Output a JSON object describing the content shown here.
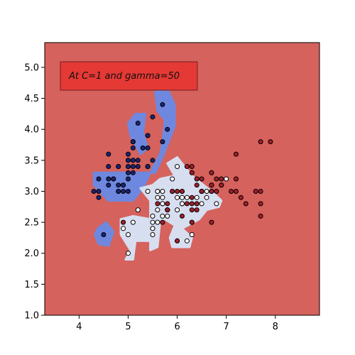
{
  "chart_data": {
    "type": "scatter",
    "title": "",
    "xlabel": "",
    "ylabel": "",
    "xlim": [
      3.3,
      8.9
    ],
    "ylim": [
      1.0,
      5.4
    ],
    "x_ticks": [
      4,
      5,
      6,
      7,
      8
    ],
    "y_ticks": [
      1.0,
      1.5,
      2.0,
      2.5,
      3.0,
      3.5,
      4.0,
      4.5,
      5.0
    ],
    "x_tick_labels": [
      "4",
      "5",
      "6",
      "7",
      "8"
    ],
    "y_tick_labels": [
      "1.0",
      "1.5",
      "2.0",
      "2.5",
      "3.0",
      "3.5",
      "4.0",
      "4.5",
      "5.0"
    ],
    "grid": false,
    "annotation": "At C=1 and gamma=50",
    "colors": {
      "background_region": "#d5625d",
      "class0_region": "#6f88df",
      "class1_region": "#d7def0",
      "class0_point": "#1c2474",
      "class1_point": "#ffffff",
      "class2_point": "#a31f2a",
      "annotation_box": "#e53935",
      "point_edge": "#000000"
    },
    "series": [
      {
        "class": 0,
        "points": [
          [
            5.1,
            3.5
          ],
          [
            4.9,
            3.0
          ],
          [
            4.7,
            3.2
          ],
          [
            4.6,
            3.1
          ],
          [
            5.0,
            3.6
          ],
          [
            5.4,
            3.9
          ],
          [
            4.6,
            3.4
          ],
          [
            5.0,
            3.4
          ],
          [
            4.4,
            2.9
          ],
          [
            4.9,
            3.1
          ],
          [
            5.4,
            3.7
          ],
          [
            4.8,
            3.4
          ],
          [
            4.8,
            3.0
          ],
          [
            4.3,
            3.0
          ],
          [
            5.8,
            4.0
          ],
          [
            5.7,
            4.4
          ],
          [
            5.4,
            3.9
          ],
          [
            5.1,
            3.5
          ],
          [
            5.7,
            3.8
          ],
          [
            5.1,
            3.8
          ],
          [
            5.4,
            3.4
          ],
          [
            5.1,
            3.7
          ],
          [
            4.6,
            3.6
          ],
          [
            5.1,
            3.3
          ],
          [
            4.8,
            3.4
          ],
          [
            5.0,
            3.0
          ],
          [
            5.0,
            3.4
          ],
          [
            5.2,
            3.5
          ],
          [
            5.2,
            3.4
          ],
          [
            4.7,
            3.2
          ],
          [
            4.8,
            3.1
          ],
          [
            5.4,
            3.4
          ],
          [
            5.2,
            4.1
          ],
          [
            5.5,
            4.2
          ],
          [
            4.9,
            3.1
          ],
          [
            5.0,
            3.2
          ],
          [
            5.5,
            3.5
          ],
          [
            4.4,
            3.0
          ],
          [
            5.1,
            3.4
          ],
          [
            5.0,
            3.5
          ],
          [
            4.5,
            2.3
          ],
          [
            4.4,
            3.2
          ],
          [
            5.0,
            3.5
          ],
          [
            5.1,
            3.8
          ],
          [
            4.8,
            3.0
          ],
          [
            5.1,
            3.8
          ],
          [
            4.6,
            3.2
          ],
          [
            5.3,
            3.7
          ],
          [
            5.0,
            3.3
          ]
        ]
      },
      {
        "class": 1,
        "points": [
          [
            7.0,
            3.2
          ],
          [
            6.4,
            3.2
          ],
          [
            6.9,
            3.1
          ],
          [
            5.5,
            2.3
          ],
          [
            6.5,
            2.8
          ],
          [
            5.7,
            2.8
          ],
          [
            6.3,
            3.3
          ],
          [
            4.9,
            2.4
          ],
          [
            6.6,
            2.9
          ],
          [
            5.2,
            2.7
          ],
          [
            5.0,
            2.0
          ],
          [
            5.9,
            3.0
          ],
          [
            6.0,
            2.2
          ],
          [
            6.1,
            2.9
          ],
          [
            5.6,
            2.9
          ],
          [
            6.7,
            3.1
          ],
          [
            5.6,
            3.0
          ],
          [
            5.8,
            2.7
          ],
          [
            6.2,
            2.2
          ],
          [
            5.6,
            2.5
          ],
          [
            5.9,
            3.2
          ],
          [
            6.1,
            2.8
          ],
          [
            6.3,
            2.5
          ],
          [
            6.1,
            2.8
          ],
          [
            6.4,
            2.9
          ],
          [
            6.6,
            3.0
          ],
          [
            6.8,
            2.8
          ],
          [
            6.7,
            3.0
          ],
          [
            6.0,
            2.9
          ],
          [
            5.7,
            2.6
          ],
          [
            5.5,
            2.4
          ],
          [
            5.5,
            2.4
          ],
          [
            5.8,
            2.7
          ],
          [
            6.0,
            2.7
          ],
          [
            5.4,
            3.0
          ],
          [
            6.0,
            3.4
          ],
          [
            6.7,
            3.1
          ],
          [
            6.3,
            2.3
          ],
          [
            5.6,
            3.0
          ],
          [
            5.5,
            2.5
          ],
          [
            5.5,
            2.6
          ],
          [
            6.1,
            3.0
          ],
          [
            5.8,
            2.6
          ],
          [
            5.0,
            2.3
          ],
          [
            5.6,
            2.7
          ],
          [
            5.7,
            3.0
          ],
          [
            5.7,
            2.9
          ],
          [
            6.2,
            2.9
          ],
          [
            5.1,
            2.5
          ],
          [
            5.7,
            2.8
          ]
        ]
      },
      {
        "class": 2,
        "points": [
          [
            6.3,
            3.3
          ],
          [
            5.8,
            2.7
          ],
          [
            7.1,
            3.0
          ],
          [
            6.3,
            2.9
          ],
          [
            6.5,
            3.0
          ],
          [
            7.6,
            3.0
          ],
          [
            4.9,
            2.5
          ],
          [
            7.3,
            2.9
          ],
          [
            6.7,
            2.5
          ],
          [
            7.2,
            3.6
          ],
          [
            6.5,
            3.2
          ],
          [
            6.4,
            2.7
          ],
          [
            6.8,
            3.0
          ],
          [
            5.7,
            2.5
          ],
          [
            5.8,
            2.8
          ],
          [
            6.4,
            3.2
          ],
          [
            6.5,
            3.0
          ],
          [
            7.7,
            3.8
          ],
          [
            7.7,
            2.6
          ],
          [
            6.0,
            2.2
          ],
          [
            6.9,
            3.2
          ],
          [
            5.6,
            2.8
          ],
          [
            7.7,
            2.8
          ],
          [
            6.3,
            2.7
          ],
          [
            6.7,
            3.3
          ],
          [
            7.2,
            3.2
          ],
          [
            6.2,
            2.8
          ],
          [
            6.1,
            3.0
          ],
          [
            6.4,
            2.8
          ],
          [
            7.2,
            3.0
          ],
          [
            7.4,
            2.8
          ],
          [
            7.9,
            3.8
          ],
          [
            6.4,
            2.8
          ],
          [
            6.3,
            2.8
          ],
          [
            6.1,
            2.6
          ],
          [
            7.7,
            3.0
          ],
          [
            6.3,
            3.4
          ],
          [
            6.4,
            3.1
          ],
          [
            6.0,
            3.0
          ],
          [
            6.9,
            3.1
          ],
          [
            6.7,
            3.1
          ],
          [
            6.9,
            3.1
          ],
          [
            5.8,
            2.7
          ],
          [
            6.8,
            3.2
          ],
          [
            6.7,
            3.3
          ],
          [
            6.7,
            3.0
          ],
          [
            6.3,
            2.5
          ],
          [
            6.5,
            3.0
          ],
          [
            6.2,
            3.4
          ],
          [
            5.9,
            3.0
          ]
        ]
      }
    ],
    "regions": [
      {
        "class": 0,
        "points": [
          [
            4.3,
            3.3
          ],
          [
            4.3,
            3.1
          ],
          [
            4.6,
            2.85
          ],
          [
            5.1,
            2.85
          ],
          [
            5.3,
            3.05
          ],
          [
            5.45,
            3.3
          ],
          [
            5.65,
            3.6
          ],
          [
            5.7,
            3.8
          ],
          [
            5.75,
            4.15
          ],
          [
            5.6,
            4.3
          ],
          [
            5.55,
            4.6
          ],
          [
            5.8,
            4.65
          ],
          [
            5.95,
            4.4
          ],
          [
            5.95,
            4.05
          ],
          [
            5.8,
            3.75
          ],
          [
            5.7,
            3.55
          ],
          [
            5.55,
            3.3
          ],
          [
            5.4,
            3.3
          ],
          [
            5.2,
            3.3
          ],
          [
            5.0,
            3.3
          ]
        ]
      },
      {
        "class": 0,
        "points": [
          [
            5.15,
            4.25
          ],
          [
            5.35,
            4.25
          ],
          [
            5.3,
            3.95
          ],
          [
            5.4,
            3.7
          ],
          [
            5.25,
            3.6
          ],
          [
            5.05,
            3.9
          ],
          [
            5.0,
            4.1
          ]
        ]
      },
      {
        "class": 0,
        "points": [
          [
            4.38,
            2.4
          ],
          [
            4.55,
            2.5
          ],
          [
            4.7,
            2.35
          ],
          [
            4.6,
            2.12
          ],
          [
            4.4,
            2.15
          ],
          [
            4.32,
            2.3
          ]
        ]
      },
      {
        "class": 1,
        "points": [
          [
            5.25,
            3.05
          ],
          [
            5.45,
            2.85
          ],
          [
            5.45,
            2.55
          ],
          [
            5.1,
            2.6
          ],
          [
            4.85,
            2.55
          ],
          [
            4.85,
            2.3
          ],
          [
            5.05,
            2.05
          ],
          [
            4.95,
            1.9
          ],
          [
            5.1,
            1.9
          ],
          [
            5.15,
            2.2
          ],
          [
            5.45,
            2.2
          ],
          [
            5.45,
            2.05
          ],
          [
            5.6,
            2.1
          ],
          [
            5.65,
            2.5
          ],
          [
            5.75,
            2.55
          ],
          [
            5.95,
            2.45
          ],
          [
            5.85,
            2.25
          ],
          [
            5.9,
            2.1
          ],
          [
            6.25,
            2.1
          ],
          [
            6.3,
            2.25
          ],
          [
            6.1,
            2.4
          ],
          [
            6.45,
            2.55
          ],
          [
            6.6,
            2.7
          ],
          [
            6.85,
            2.75
          ],
          [
            6.9,
            2.85
          ],
          [
            6.7,
            3.0
          ],
          [
            6.3,
            3.25
          ],
          [
            6.0,
            3.55
          ],
          [
            5.8,
            3.45
          ],
          [
            5.95,
            3.25
          ],
          [
            5.65,
            3.2
          ],
          [
            5.5,
            3.1
          ]
        ]
      }
    ]
  }
}
